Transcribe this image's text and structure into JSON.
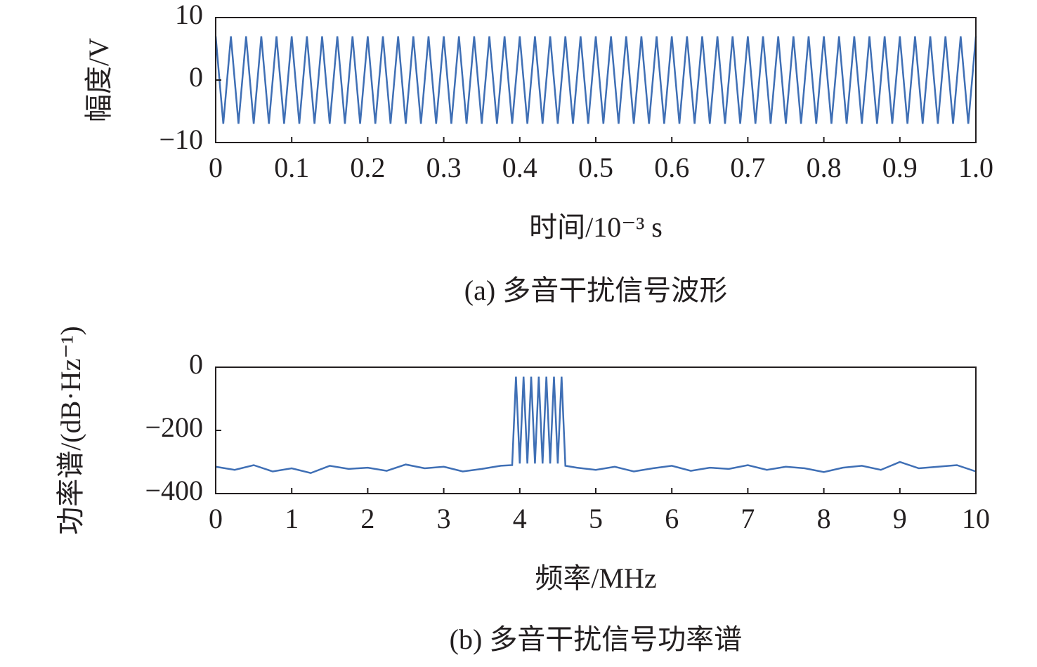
{
  "chart_data": [
    {
      "type": "line",
      "ylabel": "幅度/V",
      "xlabel": "时间/10⁻³ s",
      "caption": "(a) 多音干扰信号波形",
      "xlim": [
        0,
        1
      ],
      "ylim": [
        -10,
        10
      ],
      "xticks": [
        0,
        0.1,
        0.2,
        0.3,
        0.4,
        0.5,
        0.6,
        0.7,
        0.8,
        0.9,
        {
          "value": 1,
          "label": "1.0"
        }
      ],
      "yticks": [
        {
          "value": -10,
          "label": "−10"
        },
        0,
        10
      ],
      "series": [
        {
          "color": "#3f6fb5",
          "x": [
            0,
            0.01,
            0.02,
            0.03,
            0.04,
            0.05,
            0.06,
            0.07,
            0.08,
            0.09,
            0.1,
            0.11,
            0.12,
            0.13,
            0.14,
            0.15,
            0.16,
            0.17,
            0.18,
            0.19,
            0.2,
            0.21,
            0.22,
            0.23,
            0.24,
            0.25,
            0.26,
            0.27,
            0.28,
            0.29,
            0.3,
            0.31,
            0.32,
            0.33,
            0.34,
            0.35,
            0.36,
            0.37,
            0.38,
            0.39,
            0.4,
            0.41,
            0.42,
            0.43,
            0.44,
            0.45,
            0.46,
            0.47,
            0.48,
            0.49,
            0.5,
            0.51,
            0.52,
            0.53,
            0.54,
            0.55,
            0.56,
            0.57,
            0.58,
            0.59,
            0.6,
            0.61,
            0.62,
            0.63,
            0.64,
            0.65,
            0.66,
            0.67,
            0.68,
            0.69,
            0.7,
            0.71,
            0.72,
            0.73,
            0.74,
            0.75,
            0.76,
            0.77,
            0.78,
            0.79,
            0.8,
            0.81,
            0.82,
            0.83,
            0.84,
            0.85,
            0.86,
            0.87,
            0.88,
            0.89,
            0.9,
            0.91,
            0.92,
            0.93,
            0.94,
            0.95,
            0.96,
            0.97,
            0.98,
            0.99,
            1
          ],
          "values": [
            7,
            -7,
            7,
            -7,
            7,
            -7,
            7,
            -7,
            7,
            -7,
            7,
            -7,
            7,
            -7,
            7,
            -7,
            7,
            -7,
            7,
            -7,
            7,
            -7,
            7,
            -7,
            7,
            -7,
            7,
            -7,
            7,
            -7,
            7,
            -7,
            7,
            -7,
            7,
            -7,
            7,
            -7,
            7,
            -7,
            7,
            -7,
            7,
            -7,
            7,
            -7,
            7,
            -7,
            7,
            -7,
            7,
            -7,
            7,
            -7,
            7,
            -7,
            7,
            -7,
            7,
            -7,
            7,
            -7,
            7,
            -7,
            7,
            -7,
            7,
            -7,
            7,
            -7,
            7,
            -7,
            7,
            -7,
            7,
            -7,
            7,
            -7,
            7,
            -7,
            7,
            -7,
            7,
            -7,
            7,
            -7,
            7,
            -7,
            7,
            -7,
            7,
            -7,
            7,
            -7,
            7,
            -7,
            7,
            -7,
            7,
            -7,
            7
          ]
        }
      ]
    },
    {
      "type": "line",
      "ylabel": "功率谱/(dB·Hz⁻¹)",
      "xlabel": "频率/MHz",
      "caption": "(b) 多音干扰信号功率谱",
      "xlim": [
        0,
        10
      ],
      "ylim": [
        -400,
        0
      ],
      "xticks": [
        0,
        1,
        2,
        3,
        4,
        5,
        6,
        7,
        8,
        9,
        10
      ],
      "yticks": [
        {
          "value": -400,
          "label": "−400"
        },
        {
          "value": -200,
          "label": "−200"
        },
        0
      ],
      "series": [
        {
          "color": "#3f6fb5",
          "x": [
            0,
            0.25,
            0.5,
            0.75,
            1,
            1.25,
            1.5,
            1.75,
            2,
            2.25,
            2.5,
            2.75,
            3,
            3.25,
            3.5,
            3.75,
            3.9,
            3.95,
            4,
            4.05,
            4.1,
            4.15,
            4.2,
            4.25,
            4.3,
            4.35,
            4.4,
            4.45,
            4.5,
            4.55,
            4.6,
            4.75,
            5,
            5.25,
            5.5,
            5.75,
            6,
            6.25,
            6.5,
            6.75,
            7,
            7.25,
            7.5,
            7.75,
            8,
            8.25,
            8.5,
            8.75,
            9,
            9.25,
            9.5,
            9.75,
            10
          ],
          "values": [
            -315,
            -325,
            -310,
            -330,
            -320,
            -335,
            -312,
            -322,
            -318,
            -328,
            -308,
            -320,
            -315,
            -330,
            -322,
            -312,
            -310,
            -30,
            -305,
            -30,
            -305,
            -30,
            -305,
            -30,
            -305,
            -30,
            -305,
            -30,
            -305,
            -30,
            -312,
            -318,
            -325,
            -315,
            -330,
            -320,
            -312,
            -328,
            -318,
            -322,
            -310,
            -325,
            -315,
            -320,
            -332,
            -318,
            -312,
            -325,
            -300,
            -320,
            -315,
            -310,
            -330
          ]
        }
      ]
    }
  ]
}
